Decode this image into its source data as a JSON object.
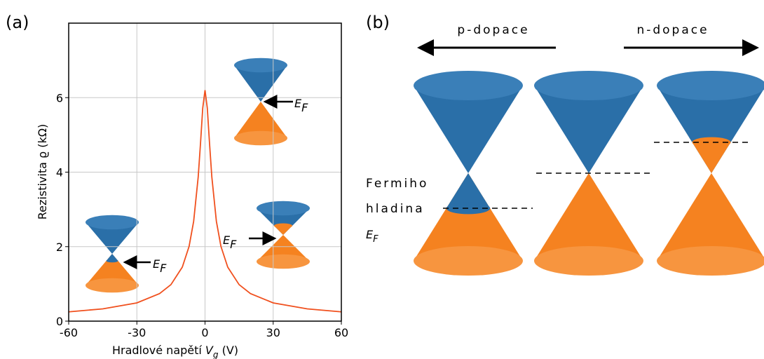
{
  "chart_data": {
    "type": "line",
    "panel_label": "(a)",
    "xlabel": {
      "text": "Hradlové napětí ",
      "var": "V",
      "sub": "g",
      "unit": " (V)"
    },
    "ylabel": "Rezistivita ϱ (kΩ)",
    "x": [
      -60,
      -45,
      -30,
      -20,
      -15,
      -10,
      -7,
      -5,
      -3,
      -2,
      -1,
      0,
      1,
      2,
      3,
      5,
      7,
      10,
      15,
      20,
      30,
      45,
      60
    ],
    "values": [
      0.25,
      0.33,
      0.49,
      0.74,
      0.98,
      1.45,
      2.01,
      2.68,
      3.87,
      4.76,
      5.72,
      6.2,
      5.72,
      4.76,
      3.87,
      2.68,
      2.01,
      1.45,
      0.98,
      0.74,
      0.49,
      0.33,
      0.25
    ],
    "color": "#f0501e",
    "xlim": [
      -60,
      60
    ],
    "ylim": [
      0,
      8
    ],
    "xticks": [
      -60,
      -30,
      0,
      30,
      60
    ],
    "yticks": [
      0,
      2,
      4,
      6
    ],
    "grid": true,
    "annotation": {
      "var": "E",
      "sub": "F"
    }
  },
  "diagram": {
    "panel_label": "(b)",
    "p_label": "p-dopace",
    "n_label": "n-dopace",
    "fermi_words": [
      "Fermiho",
      "hladina"
    ],
    "fermi_symbol": {
      "var": "E",
      "sub": "F"
    }
  }
}
